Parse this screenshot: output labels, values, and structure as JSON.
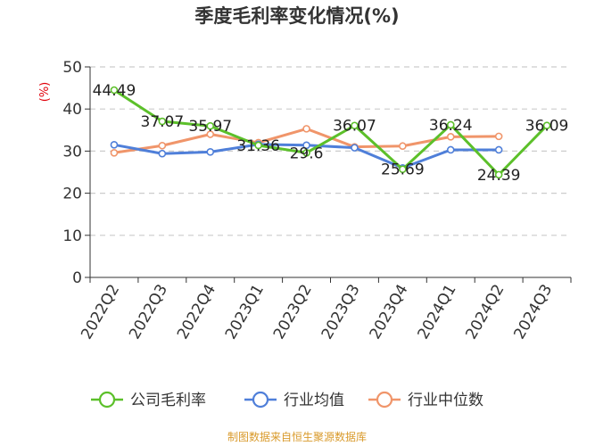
{
  "chart_data": {
    "type": "line",
    "title": "季度毛利率变化情况(%)",
    "ylabel": "(%)",
    "xlabel": "",
    "ylim": [
      0,
      50
    ],
    "yticks": [
      0,
      10,
      20,
      30,
      40,
      50
    ],
    "grid": true,
    "legend_position": "bottom",
    "categories": [
      "2022Q2",
      "2022Q3",
      "2022Q4",
      "2023Q1",
      "2023Q2",
      "2023Q3",
      "2023Q4",
      "2024Q1",
      "2024Q2",
      "2024Q3"
    ],
    "series": [
      {
        "name": "公司毛利率",
        "color": "#5cc02a",
        "values": [
          44.49,
          37.07,
          35.97,
          31.36,
          29.6,
          36.07,
          25.69,
          36.24,
          24.39,
          36.09
        ],
        "labels": [
          "44.49",
          "37.07",
          "35.97",
          "31.36",
          "29.6",
          "36.07",
          "25.69",
          "36.24",
          "24.39",
          "36.09"
        ]
      },
      {
        "name": "行业均值",
        "color": "#4f7fd9",
        "values": [
          31.5,
          29.4,
          29.8,
          31.6,
          31.4,
          30.8,
          26.0,
          30.3,
          30.3,
          null
        ]
      },
      {
        "name": "行业中位数",
        "color": "#f0956a",
        "values": [
          29.6,
          31.3,
          34.0,
          32.0,
          35.3,
          31.0,
          31.2,
          33.4,
          33.5,
          null
        ]
      }
    ],
    "source": "制图数据来自恒生聚源数据库"
  }
}
